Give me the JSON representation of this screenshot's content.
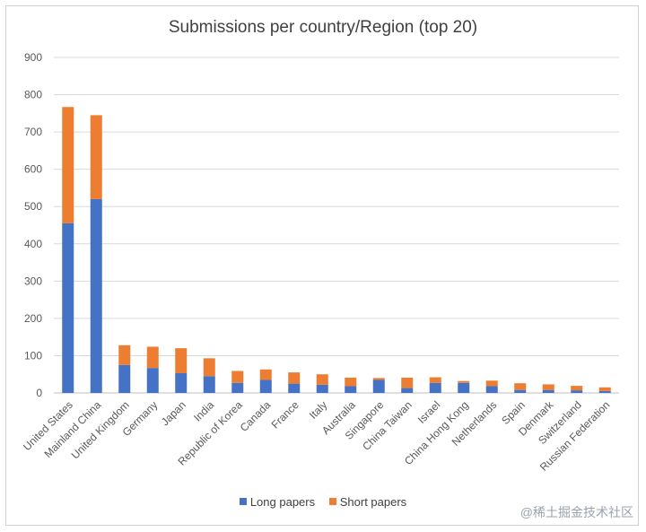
{
  "chart_data": {
    "type": "bar",
    "stacked": true,
    "title": "Submissions per country/Region  (top 20)",
    "xlabel": "",
    "ylabel": "",
    "ylim": [
      0,
      900
    ],
    "yticks": [
      0,
      100,
      200,
      300,
      400,
      500,
      600,
      700,
      800,
      900
    ],
    "grid": true,
    "legend_position": "bottom",
    "categories": [
      "United States",
      "Mainland China",
      "United Kingdom",
      "Germany",
      "Japan",
      "India",
      "Republic of Korea",
      "Canada",
      "France",
      "Italy",
      "Australia",
      "Singapore",
      "China Taiwan",
      "Israel",
      "China Hong Kong",
      "Netherlands",
      "Spain",
      "Denmark",
      "Switzerland",
      "Russian Federation"
    ],
    "series": [
      {
        "name": "Long papers",
        "color": "#4472c4",
        "values": [
          455,
          520,
          75,
          67,
          53,
          45,
          27,
          35,
          25,
          22,
          18,
          35,
          13,
          27,
          27,
          18,
          8,
          8,
          7,
          5
        ]
      },
      {
        "name": "Short papers",
        "color": "#ed7d31",
        "values": [
          312,
          225,
          53,
          57,
          67,
          48,
          32,
          28,
          30,
          28,
          23,
          5,
          28,
          15,
          5,
          15,
          18,
          15,
          12,
          10
        ]
      }
    ]
  },
  "watermark": "@稀土掘金技术社区"
}
